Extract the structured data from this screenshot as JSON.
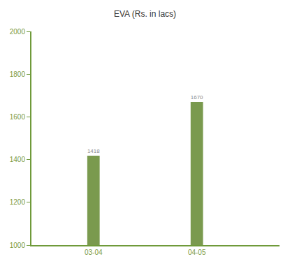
{
  "chart_data": {
    "type": "bar",
    "title": "EVA (Rs. in lacs)",
    "categories": [
      "03-04",
      "04-05"
    ],
    "values": [
      1418,
      1670
    ],
    "color": "#7a9a4e",
    "ylim": [
      1000,
      2000
    ],
    "yticks": [
      1000,
      1200,
      1400,
      1600,
      1800,
      2000
    ],
    "grid": false,
    "data_labels": true
  }
}
